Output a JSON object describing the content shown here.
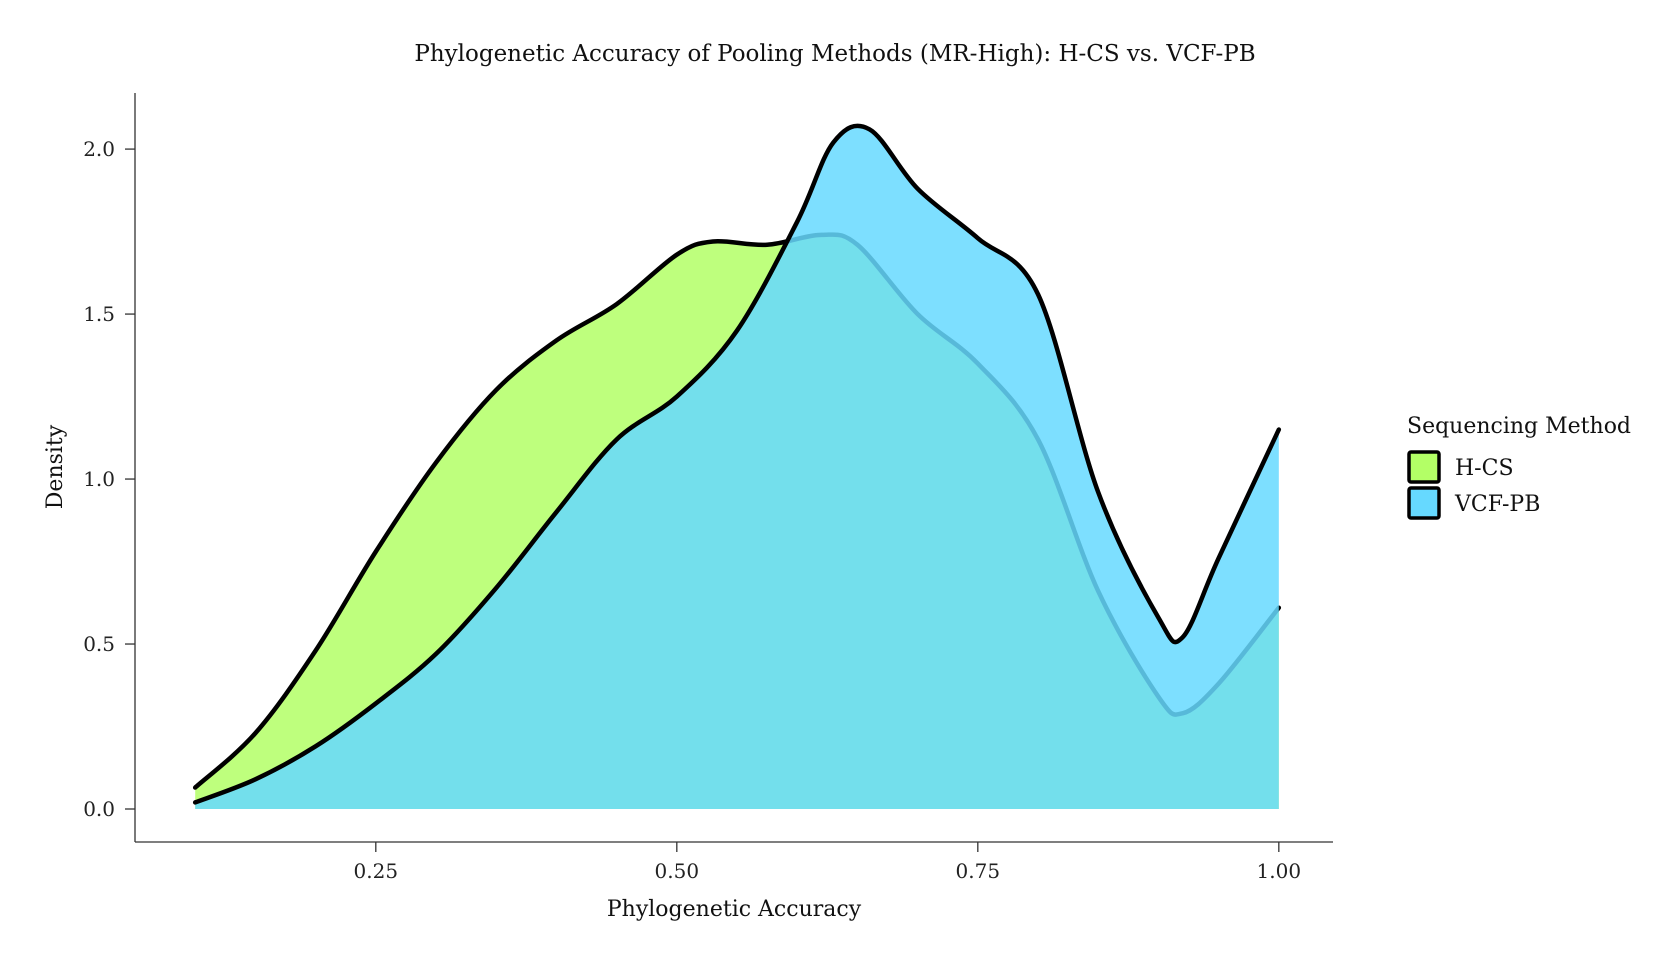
{
  "chart_data": {
    "type": "area",
    "title": "Phylogenetic Accuracy of Pooling Methods (MR-High): H-CS vs. VCF-PB",
    "xlabel": "Phylogenetic Accuracy",
    "ylabel": "Density",
    "xlim": [
      0.05,
      1.045
    ],
    "ylim": [
      -0.1,
      2.17
    ],
    "x_ticks": [
      0.25,
      0.5,
      0.75,
      1.0
    ],
    "x_tick_labels": [
      "0.25",
      "0.50",
      "0.75",
      "1.00"
    ],
    "y_ticks": [
      0.0,
      0.5,
      1.0,
      1.5,
      2.0
    ],
    "y_tick_labels": [
      "0.0",
      "0.5",
      "1.0",
      "1.5",
      "2.0"
    ],
    "legend": {
      "title": "Sequencing Method",
      "position": "right"
    },
    "series": [
      {
        "name": "H-CS",
        "color": "#b3ff66",
        "x": [
          0.1,
          0.15,
          0.2,
          0.25,
          0.3,
          0.35,
          0.4,
          0.45,
          0.5,
          0.53,
          0.575,
          0.62,
          0.65,
          0.7,
          0.75,
          0.8,
          0.85,
          0.9,
          0.92,
          0.95,
          1.0
        ],
        "values": [
          0.065,
          0.23,
          0.48,
          0.78,
          1.05,
          1.27,
          1.42,
          1.53,
          1.68,
          1.72,
          1.71,
          1.74,
          1.71,
          1.5,
          1.35,
          1.12,
          0.66,
          0.34,
          0.29,
          0.38,
          0.61
        ]
      },
      {
        "name": "VCF-PB",
        "color": "#66d9ff",
        "x": [
          0.1,
          0.15,
          0.2,
          0.25,
          0.3,
          0.35,
          0.4,
          0.45,
          0.5,
          0.55,
          0.6,
          0.63,
          0.66,
          0.7,
          0.75,
          0.8,
          0.85,
          0.9,
          0.92,
          0.95,
          1.0
        ],
        "values": [
          0.02,
          0.09,
          0.19,
          0.32,
          0.47,
          0.67,
          0.9,
          1.12,
          1.25,
          1.45,
          1.78,
          2.02,
          2.06,
          1.88,
          1.73,
          1.56,
          0.96,
          0.58,
          0.52,
          0.76,
          1.15
        ]
      }
    ]
  }
}
